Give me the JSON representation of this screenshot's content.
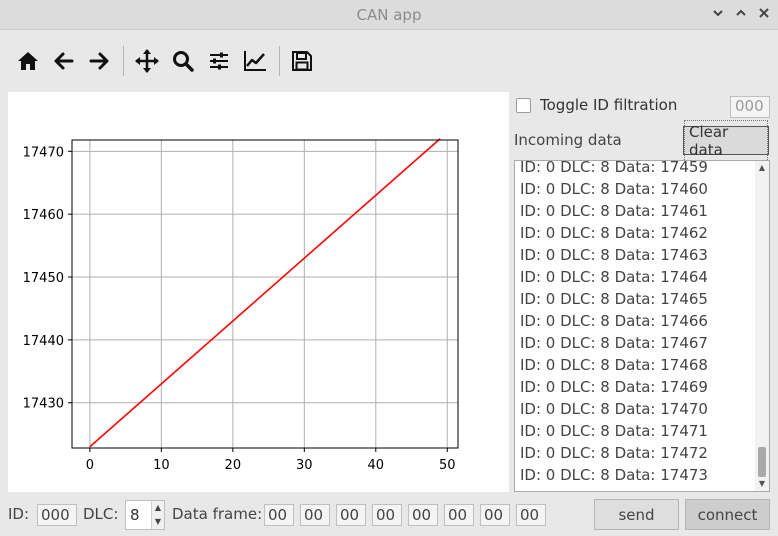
{
  "window": {
    "title": "CAN app"
  },
  "toolbar": {
    "icons": [
      "home-icon",
      "back-arrow-icon",
      "forward-arrow-icon",
      "pan-icon",
      "zoom-icon",
      "configure-subplots-icon",
      "edit-curve-icon",
      "save-icon"
    ]
  },
  "chart_data": {
    "type": "line",
    "x": [
      0,
      49
    ],
    "series": [
      {
        "values": [
          17423,
          17472
        ],
        "color": "#ff0000"
      }
    ],
    "xlim": [
      -2.5,
      51.5
    ],
    "ylim": [
      17422.8,
      17471.8
    ],
    "xticks": [
      "0",
      "10",
      "20",
      "30",
      "40",
      "50"
    ],
    "yticks": [
      "17430",
      "17440",
      "17450",
      "17460",
      "17470"
    ],
    "grid": true,
    "title": "",
    "xlabel": "",
    "ylabel": ""
  },
  "filter": {
    "toggle_label": "Toggle ID filtration",
    "id_value": "000",
    "checked": false
  },
  "incoming": {
    "label": "Incoming data",
    "clear_label": "Clear data",
    "items": [
      "ID: 0 DLC: 8 Data: 17459",
      "ID: 0 DLC: 8 Data: 17460",
      "ID: 0 DLC: 8 Data: 17461",
      "ID: 0 DLC: 8 Data: 17462",
      "ID: 0 DLC: 8 Data: 17463",
      "ID: 0 DLC: 8 Data: 17464",
      "ID: 0 DLC: 8 Data: 17465",
      "ID: 0 DLC: 8 Data: 17466",
      "ID: 0 DLC: 8 Data: 17467",
      "ID: 0 DLC: 8 Data: 17468",
      "ID: 0 DLC: 8 Data: 17469",
      "ID: 0 DLC: 8 Data: 17470",
      "ID: 0 DLC: 8 Data: 17471",
      "ID: 0 DLC: 8 Data: 17472",
      "ID: 0 DLC: 8 Data: 17473"
    ]
  },
  "bottom": {
    "id_label": "ID:",
    "id_value": "000",
    "dlc_label": "DLC:",
    "dlc_value": "8",
    "frame_label": "Data frame:",
    "frame_bytes": [
      "00",
      "00",
      "00",
      "00",
      "00",
      "00",
      "00",
      "00"
    ],
    "send_label": "send",
    "connect_label": "connect"
  }
}
